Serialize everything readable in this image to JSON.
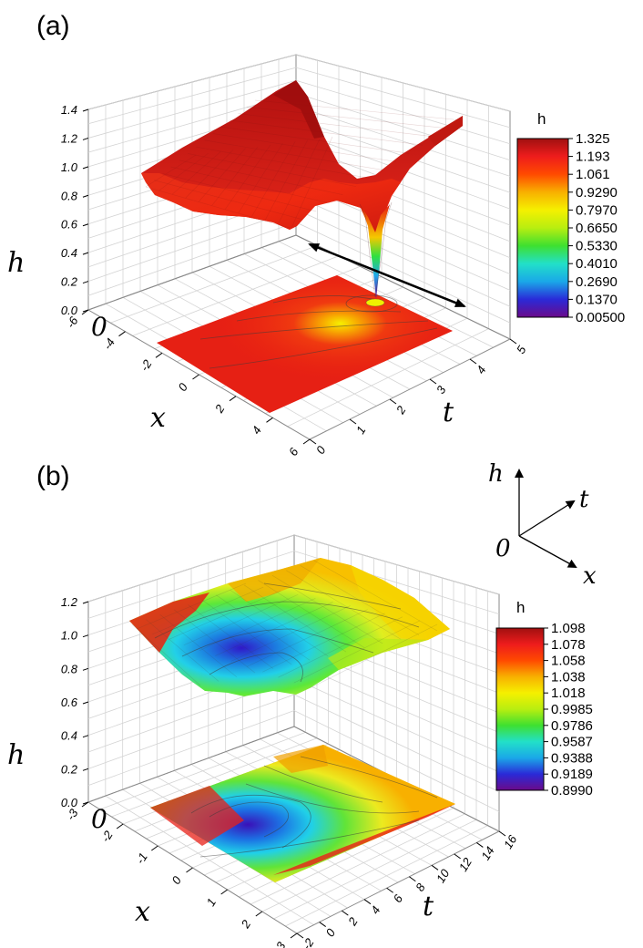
{
  "chart_data": [
    {
      "panel": "(a)",
      "type": "surface3d",
      "zlabel": "h",
      "xlabel": "x",
      "ylabel": "t",
      "z_ticks": [
        "0.0",
        "0.2",
        "0.4",
        "0.6",
        "0.8",
        "1.0",
        "1.2",
        "1.4"
      ],
      "x_ticks": [
        "-6",
        "-4",
        "-2",
        "0",
        "2",
        "4",
        "6"
      ],
      "t_ticks": [
        "0",
        "1",
        "2",
        "3",
        "4",
        "5"
      ],
      "zlim": [
        0,
        1.4
      ],
      "xlim": [
        -6,
        6
      ],
      "tlim": [
        0,
        5
      ],
      "origin_label": "0",
      "colorbar_title": "h",
      "colorbar_labels": [
        "1.325",
        "1.193",
        "1.061",
        "0.9290",
        "0.7970",
        "0.6650",
        "0.5330",
        "0.4010",
        "0.2690",
        "0.1370",
        "0.00500"
      ],
      "colorbar_range": [
        0.005,
        1.325
      ],
      "features": "surface mostly near h≈0.95; deep trough dropping to h≈0.005 near x≈2, t≈4; projected contour map on base plane",
      "arrow": "double-headed arrow along t-direction near the trough"
    },
    {
      "panel": "(b)",
      "type": "surface3d",
      "zlabel": "h",
      "xlabel": "x",
      "ylabel": "t",
      "z_ticks": [
        "0.0",
        "0.2",
        "0.4",
        "0.6",
        "0.8",
        "1.0",
        "1.2"
      ],
      "x_ticks": [
        "-3",
        "-2",
        "-1",
        "0",
        "1",
        "2",
        "3"
      ],
      "t_ticks": [
        "-2",
        "0",
        "2",
        "4",
        "6",
        "8",
        "10",
        "12",
        "14",
        "16"
      ],
      "zlim": [
        0,
        1.2
      ],
      "xlim": [
        -3,
        3
      ],
      "tlim": [
        -2,
        16
      ],
      "origin_label": "0",
      "colorbar_title": "h",
      "colorbar_labels": [
        "1.098",
        "1.078",
        "1.058",
        "1.038",
        "1.018",
        "0.9985",
        "0.9786",
        "0.9587",
        "0.9388",
        "0.9189",
        "0.8990"
      ],
      "colorbar_range": [
        0.899,
        1.098
      ],
      "features": "smooth surface between h≈0.9 and 1.1; minimum near x≈-2, t≈0; projected contour map on base plane"
    }
  ],
  "axes_inset": {
    "labels": [
      "h",
      "t",
      "0",
      "x"
    ]
  },
  "colors": {
    "rainbow": [
      "#6b0a8a",
      "#2a2ad8",
      "#1aa8e8",
      "#22e0c8",
      "#3ee030",
      "#b8ee10",
      "#f5f000",
      "#f8b000",
      "#ff4a00",
      "#ee1c1c",
      "#a01010"
    ]
  }
}
